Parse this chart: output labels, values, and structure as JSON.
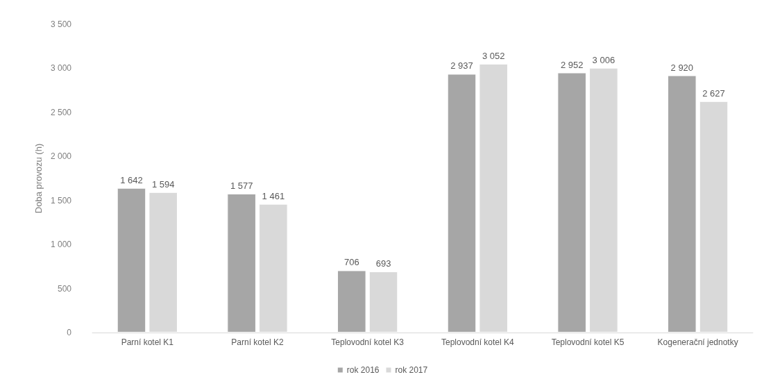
{
  "chart_data": {
    "type": "bar",
    "ylabel": "Doba provozu (h)",
    "categories": [
      "Parní kotel K1",
      "Parní kotel K2",
      "Teplovodní kotel K3",
      "Teplovodní kotel K4",
      "Teplovodní kotel K5",
      "Kogenerační jednotky"
    ],
    "series": [
      {
        "name": "rok 2016",
        "color": "#a6a6a6",
        "values": [
          1642,
          1577,
          706,
          2937,
          2952,
          2920
        ],
        "value_labels": [
          "1 642",
          "1 577",
          "706",
          "2 937",
          "2 952",
          "2 920"
        ]
      },
      {
        "name": "rok 2017",
        "color": "#d9d9d9",
        "values": [
          1594,
          1461,
          693,
          3052,
          3006,
          2627
        ],
        "value_labels": [
          "1 594",
          "1 461",
          "693",
          "3 052",
          "3 006",
          "2 627"
        ]
      }
    ],
    "ylim": [
      0,
      3500
    ],
    "yticks": [
      0,
      500,
      {
        "value": 1000,
        "label": "1 000"
      },
      {
        "value": 1500,
        "label": "1 500"
      },
      {
        "value": 2000,
        "label": "2 000"
      },
      {
        "value": 2500,
        "label": "2 500"
      },
      {
        "value": 3000,
        "label": "3 000"
      },
      {
        "value": 3500,
        "label": "3 500"
      }
    ],
    "grid": false,
    "legend": "bottom"
  }
}
